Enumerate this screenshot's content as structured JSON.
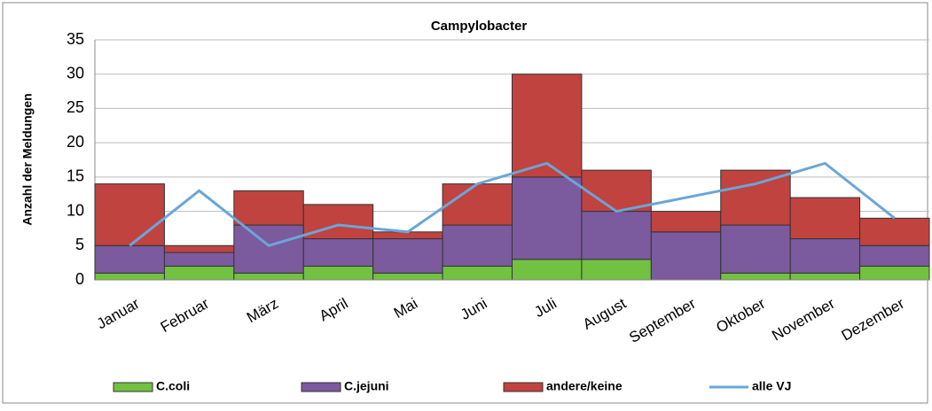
{
  "chart_data": {
    "type": "bar",
    "stacked": true,
    "title": "Campylobacter",
    "y_label": "Anzahl der Meldungen",
    "categories": [
      "Januar",
      "Februar",
      "März",
      "April",
      "Mai",
      "Juni",
      "Juli",
      "August",
      "September",
      "Oktober",
      "November",
      "Dezember"
    ],
    "series": [
      {
        "name": "C.coli",
        "color": "#72c140",
        "type": "bar",
        "values": [
          1,
          2,
          1,
          2,
          1,
          2,
          3,
          3,
          0,
          1,
          1,
          2
        ]
      },
      {
        "name": "C.jejuni",
        "color": "#7b5a9e",
        "type": "bar",
        "values": [
          4,
          2,
          7,
          4,
          5,
          6,
          12,
          7,
          7,
          7,
          5,
          3
        ]
      },
      {
        "name": "andere/keine",
        "color": "#c0433f",
        "type": "bar",
        "values": [
          9,
          1,
          5,
          5,
          1,
          6,
          15,
          6,
          3,
          8,
          6,
          4
        ]
      },
      {
        "name": "alle VJ",
        "color": "#6aa6d8",
        "type": "line",
        "values": [
          5,
          13,
          5,
          8,
          7,
          14,
          17,
          10,
          12,
          14,
          17,
          9
        ]
      }
    ],
    "ylim": [
      0,
      35
    ],
    "yticks": [
      0,
      5,
      10,
      15,
      20,
      25,
      30,
      35
    ],
    "grid": true,
    "legend": "bottom"
  }
}
